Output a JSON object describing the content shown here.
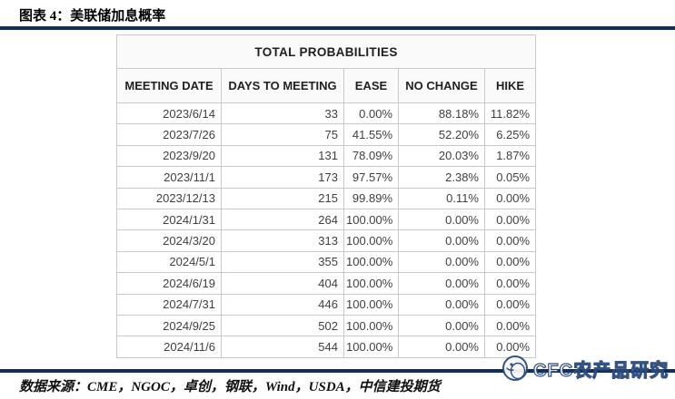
{
  "figure": {
    "caption": "图表 4：美联储加息概率"
  },
  "table": {
    "title": "TOTAL PROBABILITIES",
    "columns": [
      "MEETING DATE",
      "DAYS TO MEETING",
      "EASE",
      "NO CHANGE",
      "HIKE"
    ],
    "rows": [
      [
        "2023/6/14",
        "33",
        "0.00%",
        "88.18%",
        "11.82%"
      ],
      [
        "2023/7/26",
        "75",
        "41.55%",
        "52.20%",
        "6.25%"
      ],
      [
        "2023/9/20",
        "131",
        "78.09%",
        "20.03%",
        "1.87%"
      ],
      [
        "2023/11/1",
        "173",
        "97.57%",
        "2.38%",
        "0.05%"
      ],
      [
        "2023/12/13",
        "215",
        "99.89%",
        "0.11%",
        "0.00%"
      ],
      [
        "2024/1/31",
        "264",
        "100.00%",
        "0.00%",
        "0.00%"
      ],
      [
        "2024/3/20",
        "313",
        "100.00%",
        "0.00%",
        "0.00%"
      ],
      [
        "2024/5/1",
        "355",
        "100.00%",
        "0.00%",
        "0.00%"
      ],
      [
        "2024/6/19",
        "404",
        "100.00%",
        "0.00%",
        "0.00%"
      ],
      [
        "2024/7/31",
        "446",
        "100.00%",
        "0.00%",
        "0.00%"
      ],
      [
        "2024/9/25",
        "502",
        "100.00%",
        "0.00%",
        "0.00%"
      ],
      [
        "2024/11/6",
        "544",
        "100.00%",
        "0.00%",
        "0.00%"
      ]
    ]
  },
  "footer": {
    "source": "数据来源：CME，NGOC，卓创，钢联，Wind，USDA，中信建投期货",
    "watermark": "CFC农产品研究"
  },
  "colors": {
    "accent_line": "#142c5e",
    "table_border": "#c9c9c9",
    "cell_text": "#3f3f3f"
  }
}
